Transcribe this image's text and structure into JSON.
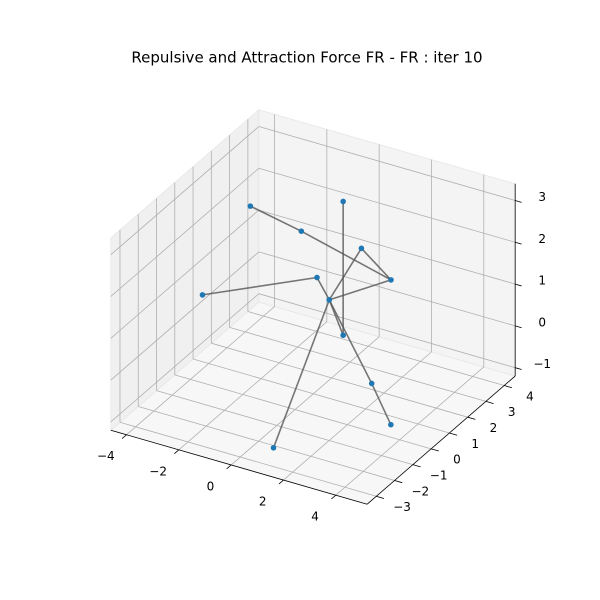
{
  "chart_data": {
    "type": "scatter3d",
    "title": "Repulsive and Attraction Force FR - FR : iter 10",
    "x": [
      -2.9,
      0.3,
      -1.3,
      0.3,
      1.5,
      -0.7,
      -4.1,
      -0.3,
      0.3,
      2.3,
      3.8,
      1.2
    ],
    "y": [
      1.7,
      2.2,
      2.2,
      3.2,
      3.1,
      2.2,
      0.8,
      2.3,
      2.2,
      0.9,
      -0.2,
      -2.9
    ],
    "z": [
      2.5,
      3.0,
      2.0,
      1.5,
      1.0,
      1.0,
      0.5,
      0.5,
      -0.2,
      -0.5,
      -0.8,
      -0.8
    ],
    "edges": [
      [
        0,
        2
      ],
      [
        2,
        4
      ],
      [
        1,
        8
      ],
      [
        3,
        4
      ],
      [
        3,
        7
      ],
      [
        4,
        7
      ],
      [
        5,
        6
      ],
      [
        5,
        7
      ],
      [
        7,
        11
      ],
      [
        7,
        9
      ],
      [
        9,
        10
      ],
      [
        7,
        8
      ]
    ],
    "color": "#1f77b4",
    "edge_color": "#555555",
    "xlim": [
      -4.6,
      5.2
    ],
    "ylim": [
      -3.5,
      4.6
    ],
    "zlim": [
      -1.2,
      3.4
    ],
    "xticks": [
      {
        "value": -4,
        "label": "−4"
      },
      {
        "value": -2,
        "label": "−2"
      },
      0,
      2,
      4
    ],
    "yticks": [
      {
        "value": -3,
        "label": "−3"
      },
      {
        "value": -2,
        "label": "−2"
      },
      {
        "value": -1,
        "label": "−1"
      },
      0,
      1,
      2,
      3,
      4
    ],
    "zticks": [
      {
        "value": -1,
        "label": "−1"
      },
      0,
      1,
      2,
      3
    ],
    "grid": true
  }
}
